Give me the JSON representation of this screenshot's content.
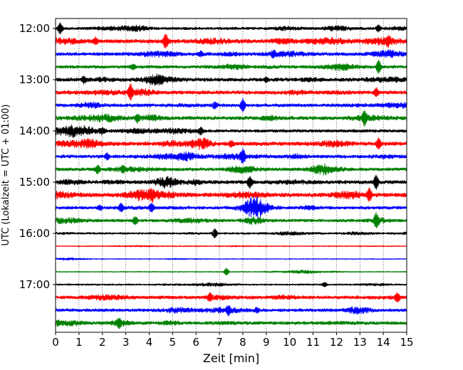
{
  "chart_data": {
    "type": "line",
    "title": "",
    "xlabel": "Zeit  [min]",
    "ylabel": "UTC (Lokalzeit = UTC + 01:00)",
    "xlim": [
      0,
      15
    ],
    "x_ticks": [
      "0",
      "1",
      "2",
      "3",
      "4",
      "5",
      "6",
      "7",
      "8",
      "9",
      "10",
      "11",
      "12",
      "13",
      "14",
      "15"
    ],
    "y_ticks": [
      "12:00",
      "13:00",
      "14:00",
      "15:00",
      "16:00",
      "17:00"
    ],
    "grid": "vertical-dotted",
    "trace_interval_min": 15,
    "colors": [
      "#000000",
      "#ff0000",
      "#0000ff",
      "#008000"
    ],
    "traces": [
      {
        "start": "12:00",
        "color": "#000000",
        "amp": 2.2,
        "spikes": [
          [
            0.2,
            7
          ],
          [
            13.8,
            4
          ]
        ]
      },
      {
        "start": "12:15",
        "color": "#ff0000",
        "amp": 3.0,
        "spikes": [
          [
            4.7,
            9
          ],
          [
            14.2,
            5
          ],
          [
            1.7,
            4
          ]
        ]
      },
      {
        "start": "12:30",
        "color": "#0000ff",
        "amp": 2.6,
        "spikes": [
          [
            6.2,
            3
          ],
          [
            9.3,
            3
          ]
        ]
      },
      {
        "start": "12:45",
        "color": "#008000",
        "amp": 2.4,
        "spikes": [
          [
            13.8,
            8
          ],
          [
            3.3,
            3
          ]
        ]
      },
      {
        "start": "13:00",
        "color": "#000000",
        "amp": 2.8,
        "spikes": [
          [
            1.2,
            4
          ],
          [
            9.0,
            3
          ]
        ]
      },
      {
        "start": "13:15",
        "color": "#ff0000",
        "amp": 2.8,
        "spikes": [
          [
            3.2,
            9
          ],
          [
            13.7,
            5
          ]
        ]
      },
      {
        "start": "13:30",
        "color": "#0000ff",
        "amp": 2.6,
        "spikes": [
          [
            8.0,
            8
          ],
          [
            6.8,
            4
          ]
        ]
      },
      {
        "start": "13:45",
        "color": "#008000",
        "amp": 2.8,
        "spikes": [
          [
            13.2,
            9
          ],
          [
            3.5,
            5
          ]
        ]
      },
      {
        "start": "14:00",
        "color": "#000000",
        "amp": 2.4,
        "spikes": [
          [
            6.2,
            4
          ],
          [
            2.0,
            3
          ]
        ]
      },
      {
        "start": "14:15",
        "color": "#ff0000",
        "amp": 3.0,
        "spikes": [
          [
            13.8,
            7
          ],
          [
            7.5,
            3
          ]
        ]
      },
      {
        "start": "14:30",
        "color": "#0000ff",
        "amp": 2.6,
        "spikes": [
          [
            8.0,
            8
          ],
          [
            2.2,
            4
          ]
        ]
      },
      {
        "start": "14:45",
        "color": "#008000",
        "amp": 2.6,
        "spikes": [
          [
            1.8,
            5
          ],
          [
            2.9,
            3
          ]
        ]
      },
      {
        "start": "15:00",
        "color": "#000000",
        "amp": 2.8,
        "spikes": [
          [
            13.7,
            9
          ],
          [
            8.3,
            7
          ]
        ]
      },
      {
        "start": "15:15",
        "color": "#ff0000",
        "amp": 3.2,
        "spikes": [
          [
            13.4,
            8
          ],
          [
            4.1,
            5
          ]
        ]
      },
      {
        "start": "15:30",
        "color": "#0000ff",
        "amp": 2.4,
        "spikes": [
          [
            2.8,
            5
          ],
          [
            4.1,
            5
          ],
          [
            1.9,
            3
          ]
        ]
      },
      {
        "start": "15:45",
        "color": "#008000",
        "amp": 2.4,
        "spikes": [
          [
            13.7,
            8
          ],
          [
            3.4,
            5
          ]
        ]
      },
      {
        "start": "16:00",
        "color": "#000000",
        "amp": 1.6,
        "spikes": [
          [
            6.8,
            6
          ]
        ]
      },
      {
        "start": "16:15",
        "color": "#ff0000",
        "amp": 0.9,
        "spikes": []
      },
      {
        "start": "16:30",
        "color": "#0000ff",
        "amp": 0.8,
        "spikes": []
      },
      {
        "start": "16:45",
        "color": "#008000",
        "amp": 0.9,
        "spikes": [
          [
            7.3,
            5
          ]
        ]
      },
      {
        "start": "17:00",
        "color": "#000000",
        "amp": 1.4,
        "spikes": [
          [
            11.5,
            3
          ]
        ]
      },
      {
        "start": "17:15",
        "color": "#ff0000",
        "amp": 2.6,
        "spikes": [
          [
            14.6,
            5
          ],
          [
            6.6,
            4
          ]
        ]
      },
      {
        "start": "17:30",
        "color": "#0000ff",
        "amp": 2.4,
        "spikes": [
          [
            7.4,
            4
          ],
          [
            8.6,
            3
          ]
        ]
      },
      {
        "start": "17:45",
        "color": "#008000",
        "amp": 2.6,
        "spikes": [
          [
            2.7,
            5
          ],
          [
            0.1,
            3
          ]
        ]
      }
    ]
  }
}
